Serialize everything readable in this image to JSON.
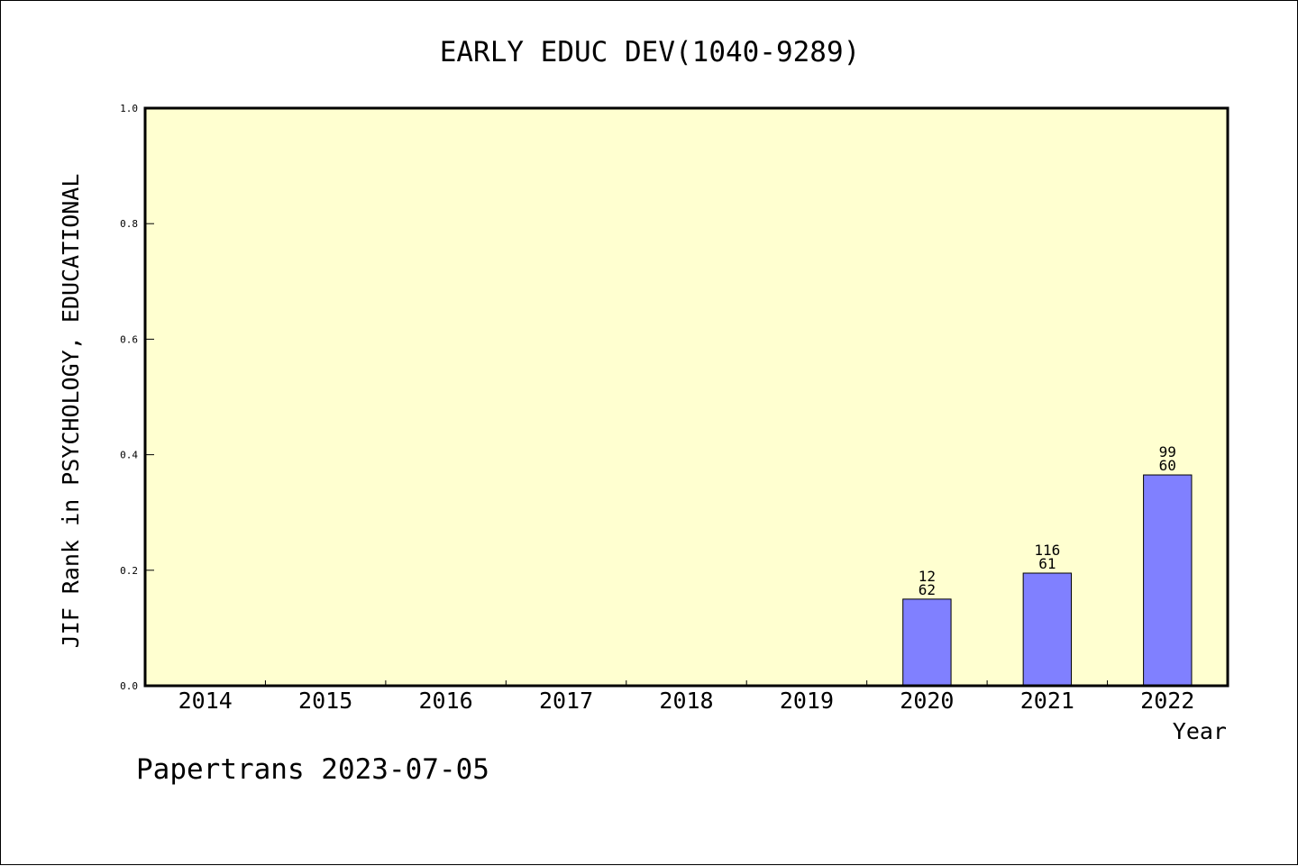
{
  "chart_data": {
    "type": "bar",
    "title": "EARLY EDUC DEV(1040-9289)",
    "xlabel": "Year",
    "ylabel": "JIF Rank in PSYCHOLOGY, EDUCATIONAL",
    "categories": [
      "2014",
      "2015",
      "2016",
      "2017",
      "2018",
      "2019",
      "2020",
      "2021",
      "2022"
    ],
    "values": [
      null,
      null,
      null,
      null,
      null,
      null,
      0.15,
      0.195,
      0.365
    ],
    "bar_labels": [
      null,
      null,
      null,
      null,
      null,
      null,
      {
        "top": "12",
        "bottom": "62"
      },
      {
        "top": "116",
        "bottom": "61"
      },
      {
        "top": "99",
        "bottom": "60"
      }
    ],
    "ylim": [
      0,
      1
    ],
    "yticks": [
      "0.0",
      "0.2",
      "0.4",
      "0.6",
      "0.8",
      "1.0"
    ],
    "grid": false,
    "colors": {
      "plot_background": "#ffffd0",
      "bar_fill": "#8080ff",
      "bar_stroke": "#000000",
      "axis": "#000000"
    }
  },
  "footer": {
    "text": "Papertrans 2023-07-05"
  }
}
